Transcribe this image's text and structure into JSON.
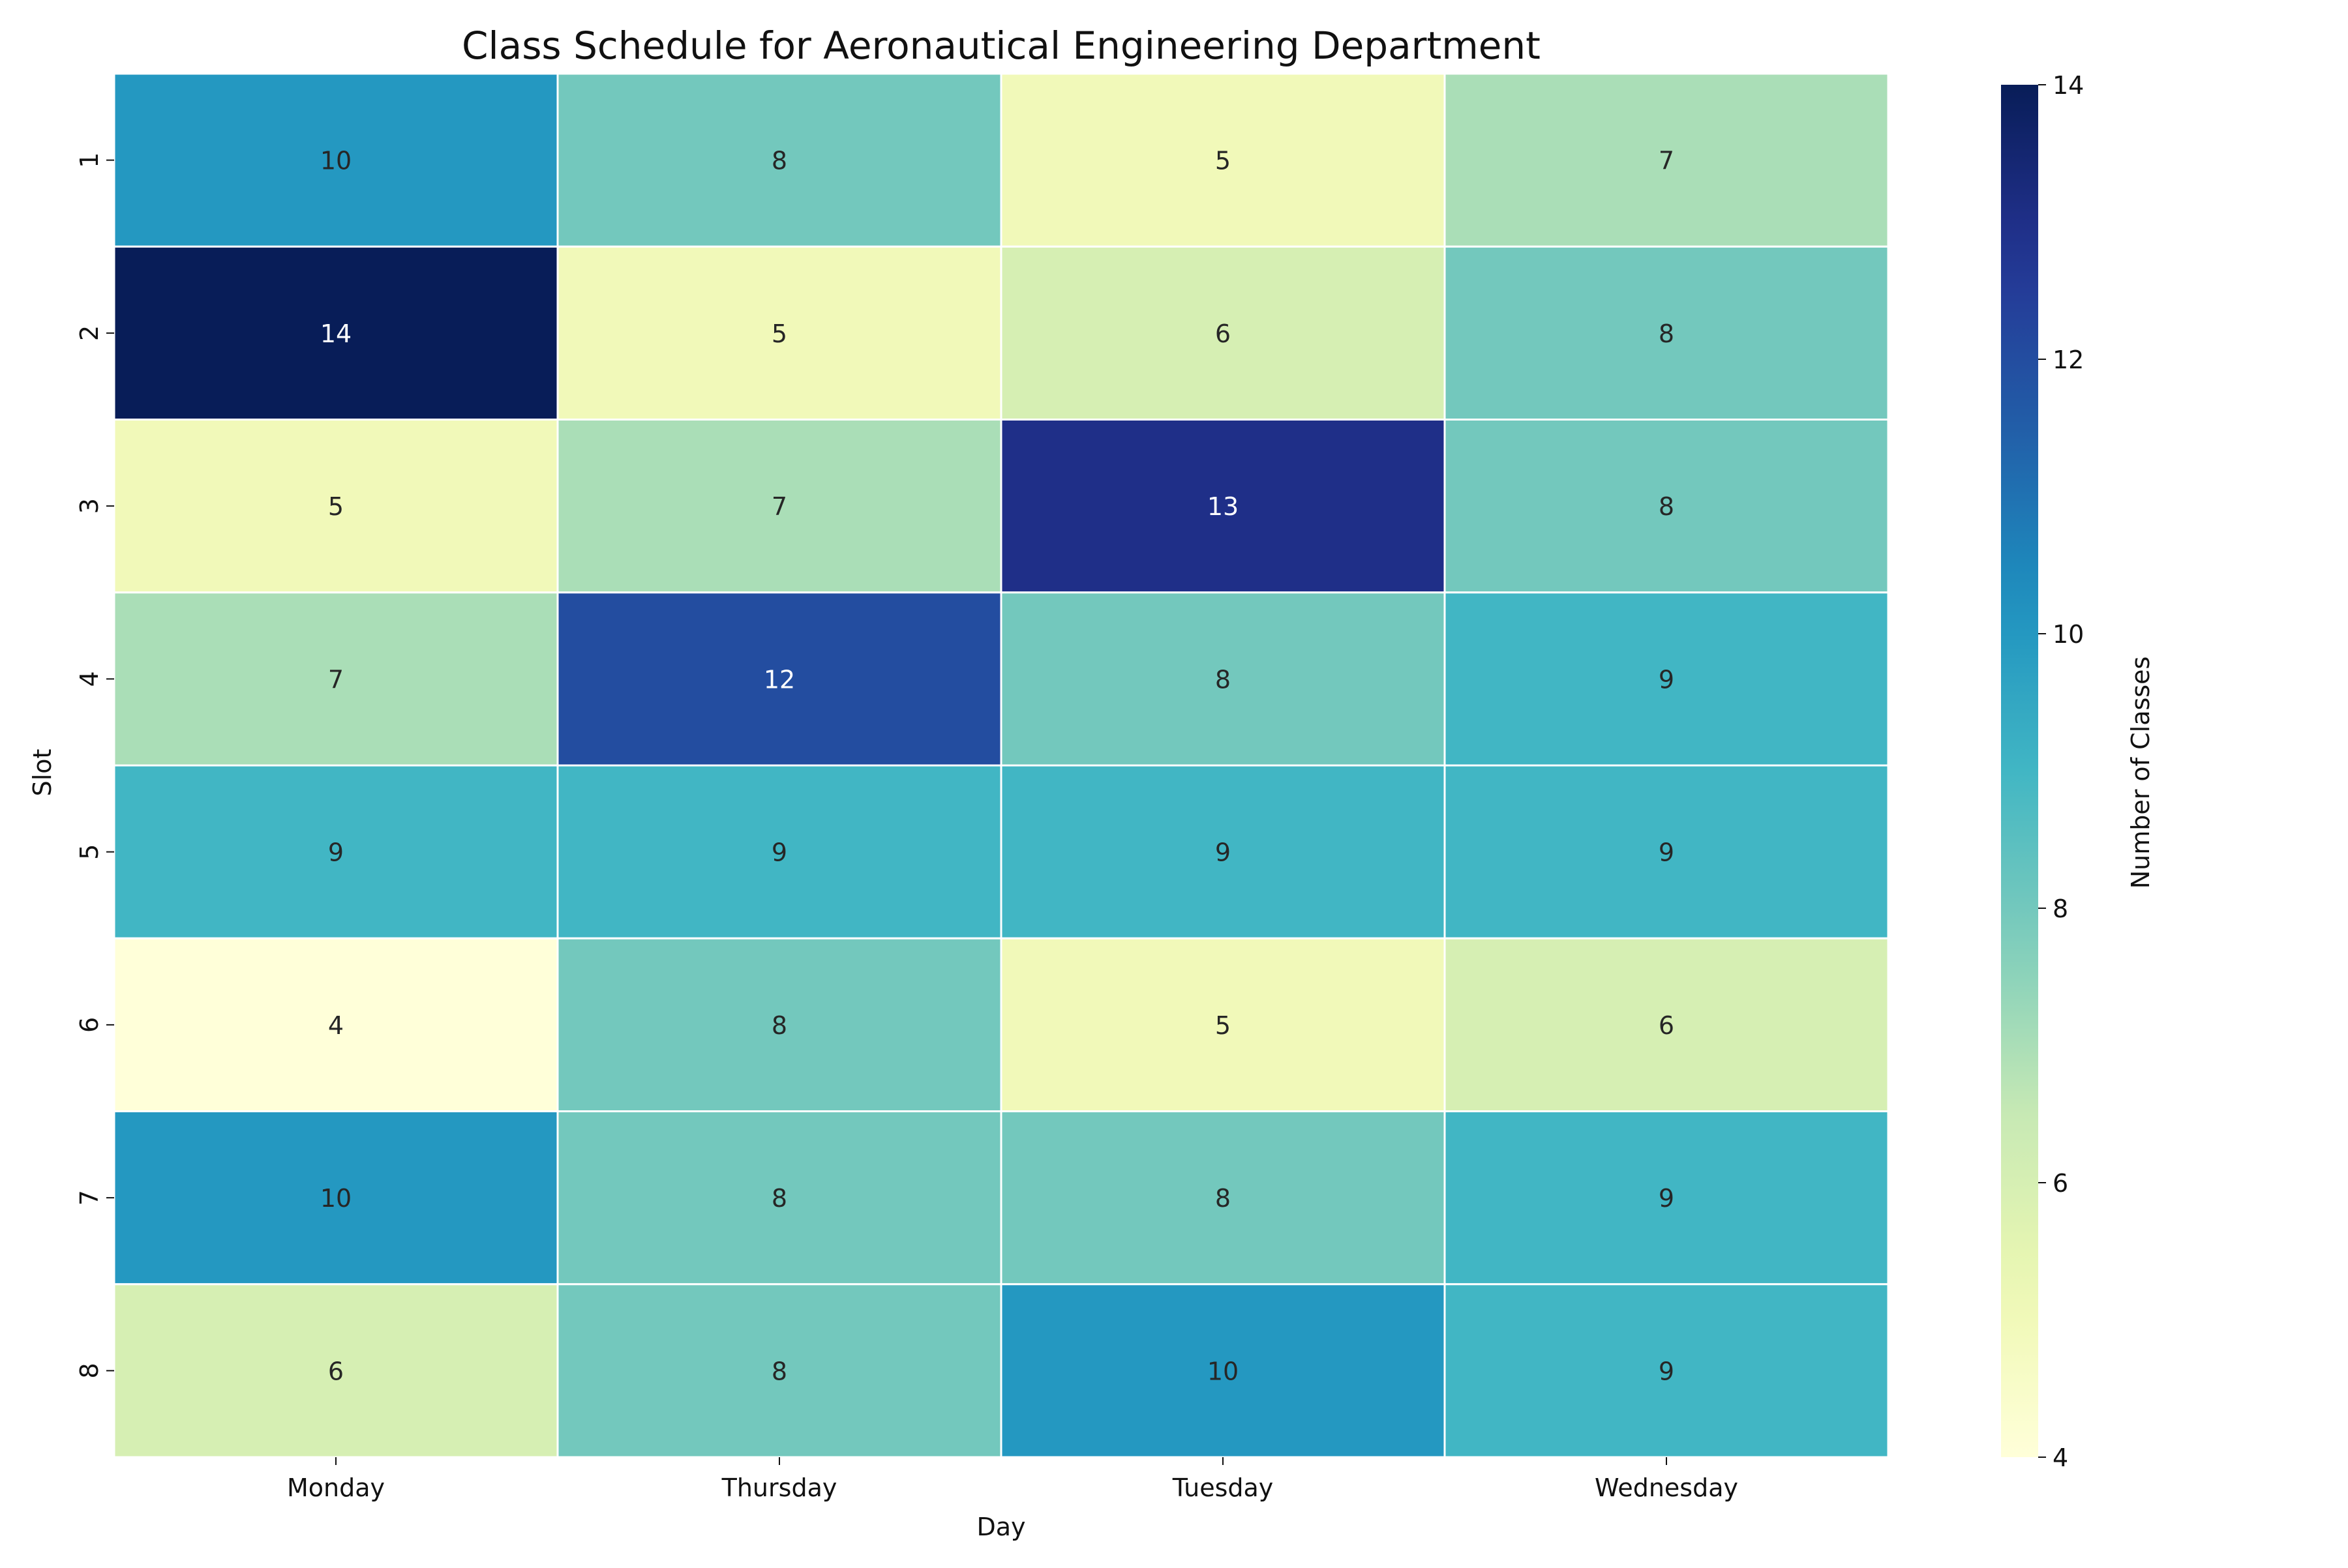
{
  "chart_data": {
    "type": "heatmap",
    "title": "Class Schedule for Aeronautical Engineering Department",
    "xlabel": "Day",
    "ylabel": "Slot",
    "x_categories": [
      "Monday",
      "Thursday",
      "Tuesday",
      "Wednesday"
    ],
    "y_categories": [
      "1",
      "2",
      "3",
      "4",
      "5",
      "6",
      "7",
      "8"
    ],
    "values": [
      [
        10,
        8,
        5,
        7
      ],
      [
        14,
        5,
        6,
        8
      ],
      [
        5,
        7,
        13,
        8
      ],
      [
        7,
        12,
        8,
        9
      ],
      [
        9,
        9,
        9,
        9
      ],
      [
        4,
        8,
        5,
        6
      ],
      [
        10,
        8,
        8,
        9
      ],
      [
        6,
        8,
        10,
        9
      ]
    ],
    "colorbar": {
      "label": "Number of Classes",
      "min": 4,
      "max": 14,
      "ticks": [
        4,
        6,
        8,
        10,
        12,
        14
      ],
      "colormap": "YlGnBu"
    }
  }
}
